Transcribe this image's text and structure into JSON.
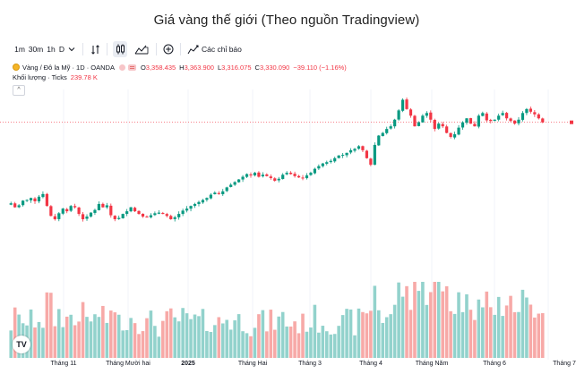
{
  "title": "Giá vàng thế giới (Theo nguồn Tradingview)",
  "toolbar": {
    "intervals": [
      "1m",
      "30m",
      "1h",
      "D"
    ],
    "indicators_label": "Các chỉ báo",
    "icons": [
      "chevron-down-icon",
      "bar-compare-icon",
      "candle-style-icon",
      "chart-type-icon",
      "add-icon",
      "indicators-icon"
    ]
  },
  "legend": {
    "symbol": "Vàng / Đô la Mỹ · 1D · OANDA",
    "o_key": "O",
    "o_val": "3,358.435",
    "h_key": "H",
    "h_val": "3,363.900",
    "l_key": "L",
    "l_val": "3,316.075",
    "c_key": "C",
    "c_val": "3,330.090",
    "change": "−39.110 (−1.16%)"
  },
  "volume": {
    "label": "Khối lượng · Ticks",
    "value": "239.78 K"
  },
  "x_axis": {
    "ticks": [
      "Tháng 11",
      "Tháng Mười hai",
      "2025",
      "Tháng Hai",
      "Tháng 3",
      "Tháng 4",
      "Tháng Năm",
      "Tháng 6",
      "Tháng 7"
    ]
  },
  "colors": {
    "up": "#089981",
    "down": "#f23645",
    "vol_up": "#92d2cc",
    "vol_down": "#f7a9a7"
  },
  "chart_data": {
    "type": "candlestick",
    "title": "",
    "xlabel": "",
    "ylabel": "",
    "grid": true,
    "x": [
      "Tháng 11",
      "Tháng Mười hai",
      "2025",
      "Tháng Hai",
      "Tháng 3",
      "Tháng 4",
      "Tháng Năm",
      "Tháng 6",
      "Tháng 7"
    ],
    "close_path": [
      2720,
      2690,
      2705,
      2740,
      2745,
      2760,
      2735,
      2770,
      2790,
      2700,
      2625,
      2600,
      2645,
      2680,
      2660,
      2700,
      2690,
      2640,
      2600,
      2620,
      2650,
      2670,
      2715,
      2690,
      2705,
      2630,
      2600,
      2610,
      2640,
      2660,
      2690,
      2660,
      2640,
      2620,
      2615,
      2630,
      2645,
      2650,
      2640,
      2625,
      2600,
      2615,
      2640,
      2665,
      2680,
      2700,
      2715,
      2730,
      2745,
      2760,
      2785,
      2800,
      2790,
      2810,
      2840,
      2860,
      2880,
      2900,
      2920,
      2940,
      2930,
      2950,
      2920,
      2935,
      2925,
      2910,
      2890,
      2905,
      2935,
      2950,
      2940,
      2925,
      2915,
      2910,
      2930,
      2950,
      2980,
      3000,
      3020,
      3030,
      3040,
      3060,
      3080,
      3085,
      3100,
      3120,
      3130,
      3150,
      3120,
      3060,
      3010,
      3160,
      3230,
      3250,
      3280,
      3300,
      3350,
      3420,
      3500,
      3430,
      3380,
      3300,
      3330,
      3380,
      3400,
      3350,
      3280,
      3320,
      3300,
      3250,
      3220,
      3240,
      3290,
      3330,
      3360,
      3320,
      3300,
      3380,
      3400,
      3345,
      3340,
      3350,
      3380,
      3400,
      3360,
      3340,
      3320,
      3350,
      3400,
      3430,
      3410,
      3390,
      3360,
      3330
    ],
    "last_close": 3330.09,
    "volume_unit": "K ticks",
    "volume_last": 239.78
  }
}
